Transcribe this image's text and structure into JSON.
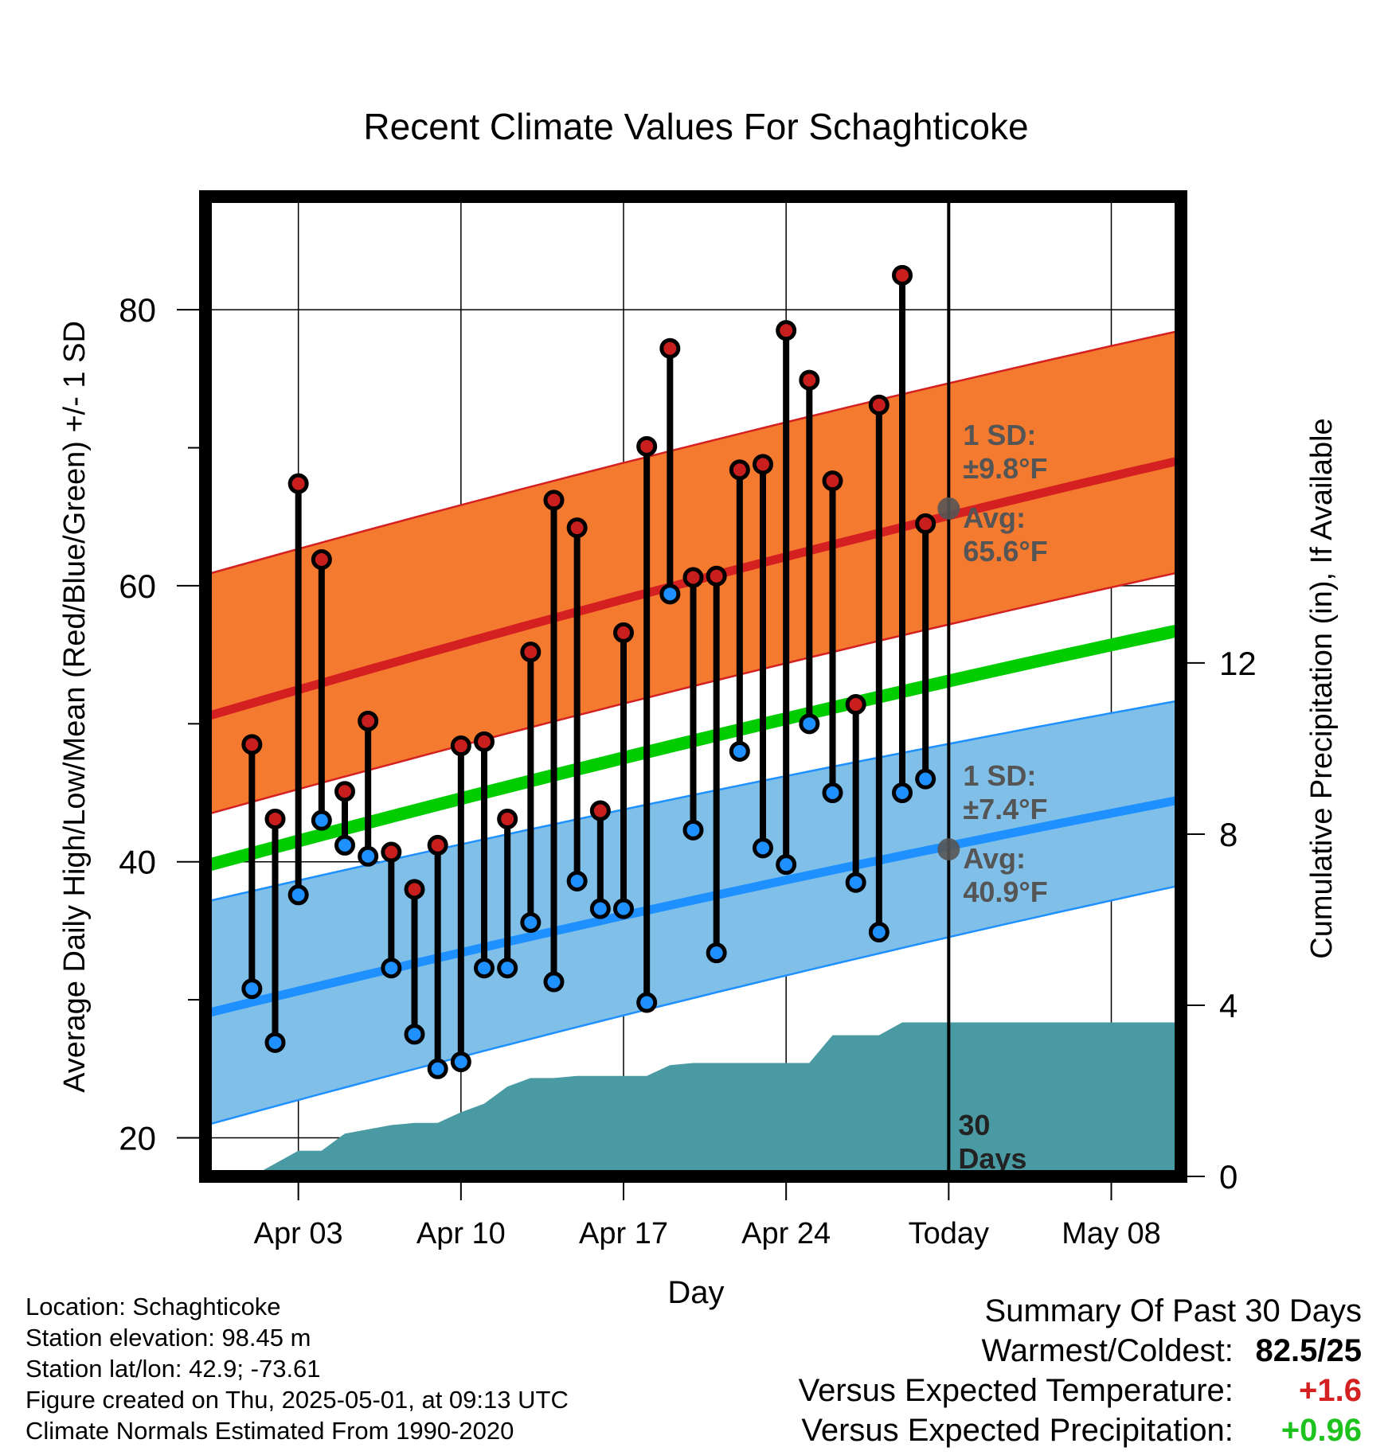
{
  "chart_data": {
    "type": "line",
    "title": "Recent Climate Values For Schaghticoke",
    "xlabel": "Day",
    "ylabel": "Average Daily High/Low/Mean (Red/Blue/Green) +/- 1 SD",
    "ylabel_right": "Cumulative Precipitation (in), If Available",
    "x_range": [
      "2025-03-30",
      "2025-05-11"
    ],
    "ylim": [
      17.2,
      88.2
    ],
    "ylim_right": [
      0,
      22.9
    ],
    "yticks": [
      20,
      40,
      60,
      80
    ],
    "yticks_right": [
      0,
      4,
      8,
      12
    ],
    "xticks": [
      {
        "date": "2025-04-03",
        "label": "Apr 03"
      },
      {
        "date": "2025-04-10",
        "label": "Apr 10"
      },
      {
        "date": "2025-04-17",
        "label": "Apr 17"
      },
      {
        "date": "2025-04-24",
        "label": "Apr 24"
      },
      {
        "date": "2025-05-01",
        "label": "Today"
      },
      {
        "date": "2025-05-08",
        "label": "May 08"
      }
    ],
    "grid": true,
    "today": "2025-05-01",
    "today_label": "30 Days",
    "normals": {
      "dates": [
        "2025-03-30",
        "2025-05-11"
      ],
      "high_mean": [
        50.5,
        69.1
      ],
      "high_sd_upper": [
        60.8,
        78.5
      ],
      "high_sd_lower": [
        43.4,
        61.0
      ],
      "low_mean": [
        29.0,
        44.5
      ],
      "low_sd_upper": [
        37.1,
        51.7
      ],
      "low_sd_lower": [
        20.9,
        38.3
      ],
      "daily_mean": [
        39.7,
        56.8
      ]
    },
    "annotations": {
      "high": {
        "sd_label": "1 SD:",
        "sd_value": "±9.8°F",
        "avg_label": "Avg:",
        "avg_value": "65.6°F",
        "avg": 65.6
      },
      "low": {
        "sd_label": "1 SD:",
        "sd_value": "±7.4°F",
        "avg_label": "Avg:",
        "avg_value": "40.9°F",
        "avg": 40.9
      }
    },
    "series": [
      {
        "name": "High",
        "color": "#c81e1e",
        "dates": [
          "2025-04-01",
          "2025-04-02",
          "2025-04-03",
          "2025-04-04",
          "2025-04-05",
          "2025-04-06",
          "2025-04-07",
          "2025-04-08",
          "2025-04-09",
          "2025-04-10",
          "2025-04-11",
          "2025-04-12",
          "2025-04-13",
          "2025-04-14",
          "2025-04-15",
          "2025-04-16",
          "2025-04-17",
          "2025-04-18",
          "2025-04-19",
          "2025-04-20",
          "2025-04-21",
          "2025-04-22",
          "2025-04-23",
          "2025-04-24",
          "2025-04-25",
          "2025-04-26",
          "2025-04-27",
          "2025-04-28",
          "2025-04-29",
          "2025-04-30"
        ],
        "values": [
          48.5,
          43.1,
          67.4,
          61.9,
          45.1,
          50.2,
          40.7,
          38.0,
          41.2,
          48.4,
          48.7,
          43.1,
          55.2,
          66.2,
          64.2,
          43.7,
          56.6,
          70.1,
          77.2,
          60.6,
          60.7,
          68.4,
          68.8,
          78.5,
          74.9,
          67.6,
          51.4,
          73.1,
          82.5,
          64.5
        ]
      },
      {
        "name": "Low",
        "color": "#1e90ff",
        "dates": [
          "2025-04-01",
          "2025-04-02",
          "2025-04-03",
          "2025-04-04",
          "2025-04-05",
          "2025-04-06",
          "2025-04-07",
          "2025-04-08",
          "2025-04-09",
          "2025-04-10",
          "2025-04-11",
          "2025-04-12",
          "2025-04-13",
          "2025-04-14",
          "2025-04-15",
          "2025-04-16",
          "2025-04-17",
          "2025-04-18",
          "2025-04-19",
          "2025-04-20",
          "2025-04-21",
          "2025-04-22",
          "2025-04-23",
          "2025-04-24",
          "2025-04-25",
          "2025-04-26",
          "2025-04-27",
          "2025-04-28",
          "2025-04-29",
          "2025-04-30"
        ],
        "values": [
          30.8,
          26.9,
          37.6,
          43.0,
          41.2,
          40.4,
          32.3,
          27.5,
          25.0,
          25.5,
          32.3,
          32.3,
          35.6,
          31.3,
          38.6,
          36.6,
          36.6,
          29.8,
          59.4,
          42.3,
          33.4,
          48.0,
          41.0,
          39.8,
          50.0,
          45.0,
          38.5,
          34.9,
          45.0,
          46.0
        ]
      },
      {
        "name": "Cumulative Precipitation",
        "type": "area",
        "color": "#4a9aa3",
        "dates": [
          "2025-03-31",
          "2025-04-01",
          "2025-04-02",
          "2025-04-03",
          "2025-04-04",
          "2025-04-05",
          "2025-04-06",
          "2025-04-07",
          "2025-04-08",
          "2025-04-09",
          "2025-04-10",
          "2025-04-11",
          "2025-04-12",
          "2025-04-13",
          "2025-04-14",
          "2025-04-15",
          "2025-04-16",
          "2025-04-17",
          "2025-04-18",
          "2025-04-19",
          "2025-04-20",
          "2025-04-21",
          "2025-04-22",
          "2025-04-23",
          "2025-04-24",
          "2025-04-25",
          "2025-04-26",
          "2025-04-27",
          "2025-04-28",
          "2025-04-29",
          "2025-04-30",
          "2025-05-01",
          "2025-05-11"
        ],
        "values": [
          0.0,
          0.0,
          0.3,
          0.6,
          0.6,
          1.0,
          1.1,
          1.2,
          1.25,
          1.25,
          1.5,
          1.7,
          2.1,
          2.3,
          2.3,
          2.35,
          2.35,
          2.35,
          2.35,
          2.6,
          2.65,
          2.65,
          2.65,
          2.65,
          2.65,
          2.65,
          3.3,
          3.3,
          3.3,
          3.6,
          3.6,
          3.6,
          3.6
        ]
      }
    ]
  },
  "footer_left": {
    "location": "Location: Schaghticoke",
    "elevation": "Station elevation: 98.45 m",
    "latlon": "Station lat/lon: 42.9; -73.61",
    "created": "Figure created on Thu, 2025-05-01, at 09:13 UTC",
    "normals": "Climate Normals Estimated From 1990-2020"
  },
  "summary": {
    "title": "Summary Of Past 30 Days",
    "warmest_coldest_label": "Warmest/Coldest:",
    "warmest_coldest_value": "82.5/25",
    "temp_label": "Versus Expected Temperature:",
    "temp_value": "+1.6",
    "precip_label": "Versus Expected Precipitation:",
    "precip_value": "+0.96"
  },
  "colors": {
    "high_band": "#f47a30",
    "high_line": "#d42020",
    "low_band": "#80c0e8",
    "low_line": "#1e90ff",
    "mean_line": "#00cc00",
    "precip": "#4a9aa3",
    "high_marker": "#c81e1e",
    "low_marker": "#1e90ff",
    "annotation": "#555555"
  }
}
